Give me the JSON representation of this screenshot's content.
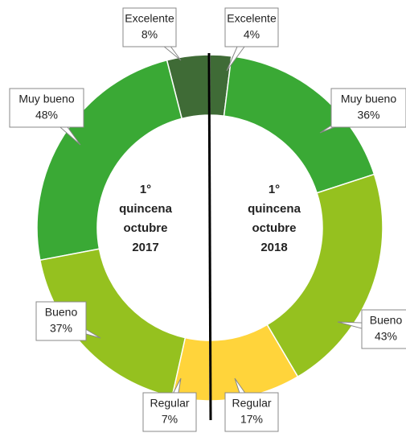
{
  "chart_data": [
    {
      "type": "pie",
      "title_lines": [
        "1°",
        "quincena",
        "octubre",
        "2017"
      ],
      "categories": [
        "Excelente",
        "Muy bueno",
        "Bueno",
        "Regular"
      ],
      "values": [
        8,
        48,
        37,
        7
      ],
      "value_labels": [
        "8%",
        "48%",
        "37%",
        "7%"
      ],
      "colors": [
        "#3f6b36",
        "#3aa935",
        "#95c11f",
        "#ffd43b"
      ]
    },
    {
      "type": "pie",
      "title_lines": [
        "1°",
        "quincena",
        "octubre",
        "2018"
      ],
      "categories": [
        "Excelente",
        "Muy bueno",
        "Bueno",
        "Regular"
      ],
      "values": [
        4,
        36,
        43,
        17
      ],
      "value_labels": [
        "4%",
        "36%",
        "43%",
        "17%"
      ],
      "colors": [
        "#3f6b36",
        "#3aa935",
        "#95c11f",
        "#ffd43b"
      ]
    }
  ]
}
